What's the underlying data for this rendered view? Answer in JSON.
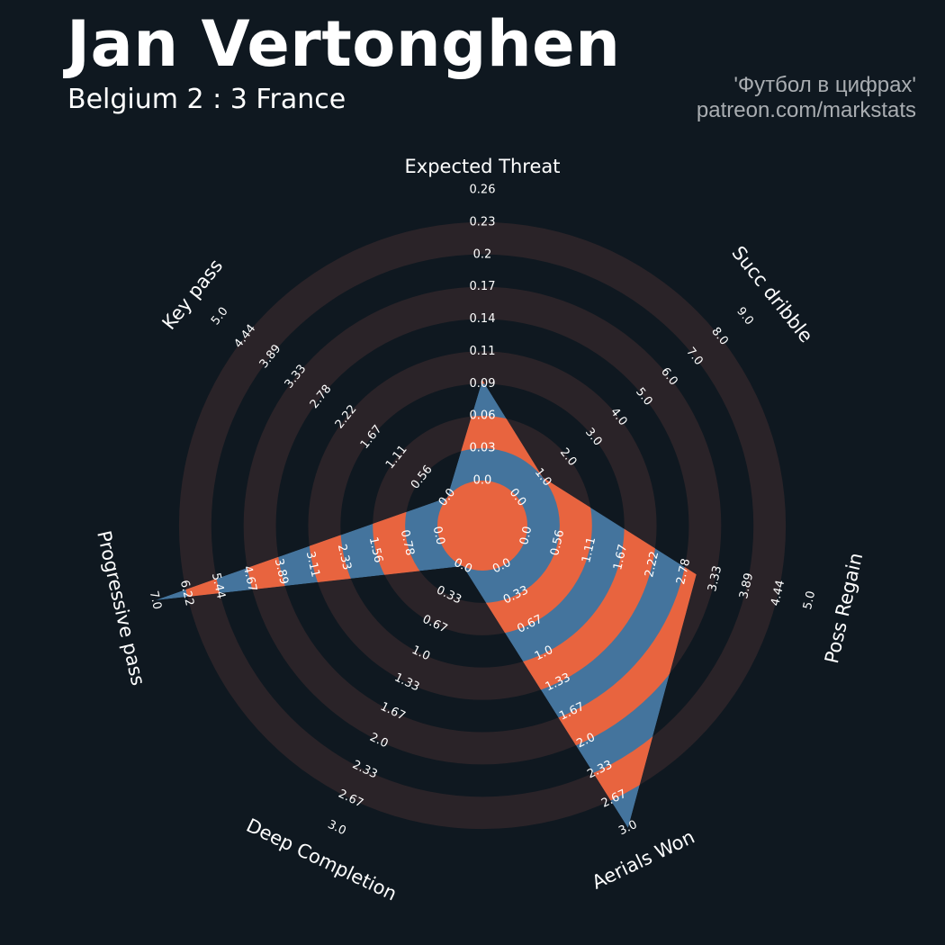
{
  "header": {
    "title": "Jan Vertonghen",
    "subtitle": "Belgium 2 : 3 France",
    "credit_line1": "'Футбол в цифрах'",
    "credit_line2": "patreon.com/markstats"
  },
  "colors": {
    "background": "#0f1820",
    "ring_band": "#2a2328",
    "fill_blue": "#44749d",
    "fill_orange": "#e8643f",
    "text": "#ffffff",
    "credit_text": "#a9adb1"
  },
  "chart_data": {
    "type": "radar",
    "title": "Jan Vertonghen",
    "subtitle": "Belgium 2 : 3 France",
    "axes": [
      {
        "name": "Expected Threat",
        "min": 0.0,
        "max": 0.26,
        "value": 0.09,
        "ticks": [
          "0.0",
          "0.03",
          "0.06",
          "0.09",
          "0.11",
          "0.14",
          "0.17",
          "0.2",
          "0.23",
          "0.26"
        ]
      },
      {
        "name": "Succ dribble",
        "min": 0.0,
        "max": 9.0,
        "value": 1.0,
        "ticks": [
          "0.0",
          "1.0",
          "2.0",
          "3.0",
          "4.0",
          "5.0",
          "6.0",
          "7.0",
          "8.0",
          "9.0"
        ]
      },
      {
        "name": "Poss Regain",
        "min": 0.0,
        "max": 5.0,
        "value": 3.0,
        "ticks": [
          "0.0",
          "0.56",
          "1.11",
          "1.67",
          "2.22",
          "2.78",
          "3.33",
          "3.89",
          "4.44",
          "5.0"
        ]
      },
      {
        "name": "Aerials Won",
        "min": 0.0,
        "max": 3.0,
        "value": 3.0,
        "ticks": [
          "0.0",
          "0.33",
          "0.67",
          "1.0",
          "1.33",
          "1.67",
          "2.0",
          "2.33",
          "2.67",
          "3.0"
        ]
      },
      {
        "name": "Deep Completion",
        "min": 0.0,
        "max": 3.0,
        "value": 0.0,
        "ticks": [
          "0.0",
          "0.33",
          "0.67",
          "1.0",
          "1.33",
          "1.67",
          "2.0",
          "2.33",
          "2.67",
          "3.0"
        ]
      },
      {
        "name": "Progressive pass",
        "min": 0.0,
        "max": 7.0,
        "value": 7.0,
        "ticks": [
          "0.0",
          "0.78",
          "1.56",
          "2.33",
          "3.11",
          "3.89",
          "4.67",
          "5.44",
          "6.22",
          "7.0"
        ]
      },
      {
        "name": "Key pass",
        "min": 0.0,
        "max": 5.0,
        "value": 0.0,
        "ticks": [
          "0.0",
          "0.56",
          "1.11",
          "1.67",
          "2.22",
          "2.78",
          "3.33",
          "3.89",
          "4.44",
          "5.0"
        ]
      }
    ],
    "grid": true,
    "legend": "none"
  }
}
